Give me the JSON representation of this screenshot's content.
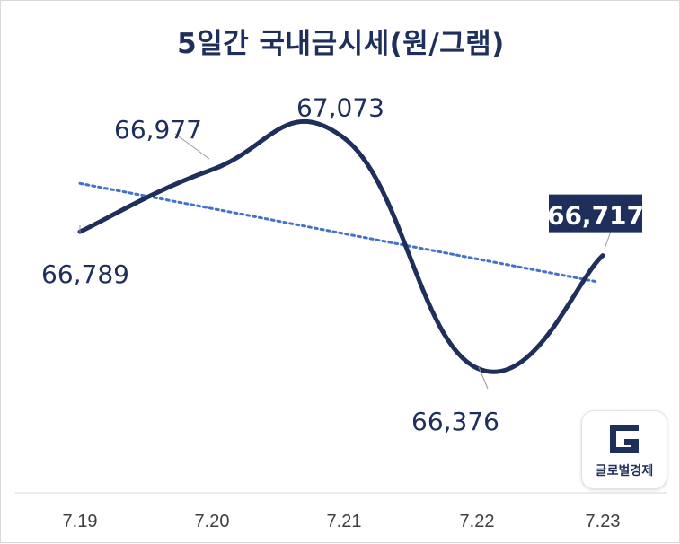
{
  "chart_data": {
    "type": "line",
    "title": "5일간 국내금시세(원/그램)",
    "categories": [
      "7.19",
      "7.20",
      "7.21",
      "7.22",
      "7.23"
    ],
    "series": [
      {
        "values": [
          66789,
          66977,
          67073,
          66376,
          66717
        ]
      }
    ],
    "data_labels": [
      "66,789",
      "66,977",
      "67,073",
      "66,376",
      "66,717"
    ],
    "highlighted_label_index": 4,
    "trendline": {
      "type": "linear",
      "style": "dotted"
    },
    "ylim": [
      66300,
      67200
    ],
    "grid": false,
    "legend": "none",
    "line_color": "#1f2f5c",
    "trend_color": "#4472c4",
    "highlight_color": "#1f2f5c"
  },
  "logo": {
    "name": "글로벌경제"
  }
}
